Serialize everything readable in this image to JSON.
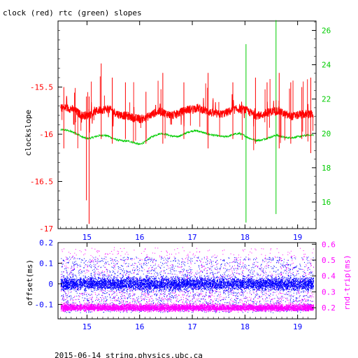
{
  "chart_data": [
    {
      "type": "line",
      "title": "clock (red) rtc (green) slopes",
      "ylabel": "clockslope",
      "y2label": "",
      "xlim": [
        14.45,
        19.35
      ],
      "ylim": [
        -17.0,
        -14.8
      ],
      "y2lim": [
        14.45,
        26.55
      ],
      "xticks": [
        "15",
        "16",
        "17",
        "18",
        "19"
      ],
      "yticks": [
        "-15.5",
        "-16",
        "-16.5",
        "-17"
      ],
      "y2ticks": [
        "26",
        "24",
        "22",
        "20",
        "18",
        "16"
      ],
      "colors": {
        "clock": "#ff0000",
        "rtc": "#00cc00",
        "axis": "#000000",
        "y2axis": "#00cc00",
        "yaxis_ticks": "#ff0000",
        "xaxis_ticks": "#0000ff"
      },
      "series": [
        {
          "name": "clock",
          "axis": "left",
          "color": "#ff0000",
          "x": [
            14.5,
            14.6,
            14.7,
            14.8,
            14.9,
            15.0,
            15.1,
            15.2,
            15.3,
            15.4,
            15.5,
            15.6,
            15.7,
            15.8,
            15.9,
            16.0,
            16.1,
            16.2,
            16.3,
            16.4,
            16.5,
            16.6,
            16.7,
            16.8,
            16.9,
            17.0,
            17.1,
            17.2,
            17.3,
            17.4,
            17.5,
            17.6,
            17.7,
            17.8,
            17.9,
            18.0,
            18.1,
            18.2,
            18.3,
            18.4,
            18.5,
            18.6,
            18.7,
            18.8,
            18.9,
            19.0,
            19.1,
            19.2,
            19.3
          ],
          "y": [
            -15.72,
            -15.72,
            -15.73,
            -15.76,
            -15.8,
            -15.8,
            -15.78,
            -15.75,
            -15.74,
            -15.73,
            -15.76,
            -15.79,
            -15.8,
            -15.81,
            -15.83,
            -15.84,
            -15.83,
            -15.8,
            -15.77,
            -15.76,
            -15.78,
            -15.8,
            -15.79,
            -15.76,
            -15.74,
            -15.73,
            -15.72,
            -15.74,
            -15.76,
            -15.78,
            -15.79,
            -15.78,
            -15.76,
            -15.74,
            -15.73,
            -15.74,
            -15.77,
            -15.8,
            -15.8,
            -15.78,
            -15.76,
            -15.75,
            -15.77,
            -15.8,
            -15.81,
            -15.8,
            -15.79,
            -15.79,
            -15.79
          ]
        },
        {
          "name": "rtc",
          "axis": "right",
          "color": "#00cc00",
          "x": [
            14.5,
            14.6,
            14.7,
            14.8,
            14.9,
            15.0,
            15.1,
            15.2,
            15.3,
            15.4,
            15.5,
            15.6,
            15.7,
            15.8,
            15.9,
            16.0,
            16.1,
            16.2,
            16.3,
            16.4,
            16.5,
            16.6,
            16.7,
            16.8,
            16.9,
            17.0,
            17.1,
            17.2,
            17.3,
            17.4,
            17.5,
            17.6,
            17.7,
            17.8,
            17.9,
            18.0,
            18.1,
            18.2,
            18.3,
            18.4,
            18.5,
            18.6,
            18.7,
            18.8,
            18.9,
            19.0,
            19.1,
            19.2,
            19.3
          ],
          "y": [
            20.2,
            20.2,
            20.1,
            20.0,
            19.8,
            19.7,
            19.75,
            19.85,
            19.9,
            19.85,
            19.7,
            19.6,
            19.55,
            19.55,
            19.45,
            19.35,
            19.5,
            19.75,
            19.9,
            20.0,
            19.95,
            19.85,
            19.8,
            19.9,
            20.05,
            20.15,
            20.15,
            20.05,
            19.95,
            19.9,
            19.85,
            19.8,
            19.85,
            19.95,
            20.0,
            19.85,
            19.7,
            19.6,
            19.6,
            19.7,
            19.8,
            19.9,
            19.8,
            19.75,
            19.75,
            19.8,
            19.85,
            19.9,
            19.9
          ]
        }
      ],
      "spikes": {
        "clock": [
          {
            "x": 14.56,
            "ymin": -16.15,
            "ymax": -15.5
          },
          {
            "x": 14.99,
            "ymin": -16.7,
            "ymax": -15.6
          },
          {
            "x": 15.04,
            "ymin": -16.95,
            "ymax": -15.6
          },
          {
            "x": 15.27,
            "ymin": -16.05,
            "ymax": -15.25
          },
          {
            "x": 15.48,
            "ymin": -16.1,
            "ymax": -15.4
          },
          {
            "x": 15.73,
            "ymin": -16.05,
            "ymax": -15.45
          },
          {
            "x": 16.12,
            "ymin": -16.1,
            "ymax": -15.55
          },
          {
            "x": 16.44,
            "ymin": -16.1,
            "ymax": -15.35
          },
          {
            "x": 16.84,
            "ymin": -16.05,
            "ymax": -15.45
          },
          {
            "x": 17.3,
            "ymin": -16.15,
            "ymax": -15.35
          },
          {
            "x": 17.77,
            "ymin": -16.05,
            "ymax": -15.45
          },
          {
            "x": 18.2,
            "ymin": -16.1,
            "ymax": -15.4
          },
          {
            "x": 18.42,
            "ymin": -16.05,
            "ymax": -15.45
          },
          {
            "x": 18.65,
            "ymin": -16.15,
            "ymax": -15.35
          },
          {
            "x": 18.87,
            "ymin": -16.1,
            "ymax": -15.45
          },
          {
            "x": 19.08,
            "ymin": -16.05,
            "ymax": -15.5
          },
          {
            "x": 19.25,
            "ymin": -16.2,
            "ymax": -15.4
          }
        ],
        "rtc": [
          {
            "x": 18.02,
            "ymin": 14.8,
            "ymax": 25.2
          },
          {
            "x": 18.59,
            "ymin": 15.3,
            "ymax": 26.6
          }
        ]
      }
    },
    {
      "type": "scatter",
      "ylabel": "offset(ms)",
      "y2label": "rnd-trip(ms)",
      "xlim": [
        14.45,
        19.35
      ],
      "ylim": [
        -0.17,
        0.2
      ],
      "y2lim": [
        0.13,
        0.61
      ],
      "xticks": [
        "15",
        "16",
        "17",
        "18",
        "19"
      ],
      "yticks": [
        "0.2",
        "0.1",
        "0",
        "-0.1"
      ],
      "y2ticks": [
        "0.6",
        "0.5",
        "0.4",
        "0.3",
        "0.2"
      ],
      "colors": {
        "offset": "#0000ff",
        "rndtrip": "#ff00ff",
        "axis": "#000000",
        "yaxis_ticks": "#0000ff",
        "y2axis": "#ff00ff",
        "xaxis_ticks": "#0000ff"
      },
      "series": [
        {
          "name": "offset",
          "axis": "left",
          "color": "#0000ff",
          "x_range": [
            14.5,
            19.3
          ],
          "center": 0.0,
          "band": 0.045,
          "outlier_span": [
            -0.14,
            0.13
          ]
        },
        {
          "name": "rnd-trip",
          "axis": "right",
          "color": "#ff00ff",
          "x_range": [
            14.5,
            19.3
          ],
          "center": 0.2,
          "band": 0.03,
          "outlier_span": [
            0.19,
            0.58
          ]
        }
      ]
    }
  ],
  "footer": {
    "text": "2015-06-14 string.physics.ubc.ca"
  }
}
